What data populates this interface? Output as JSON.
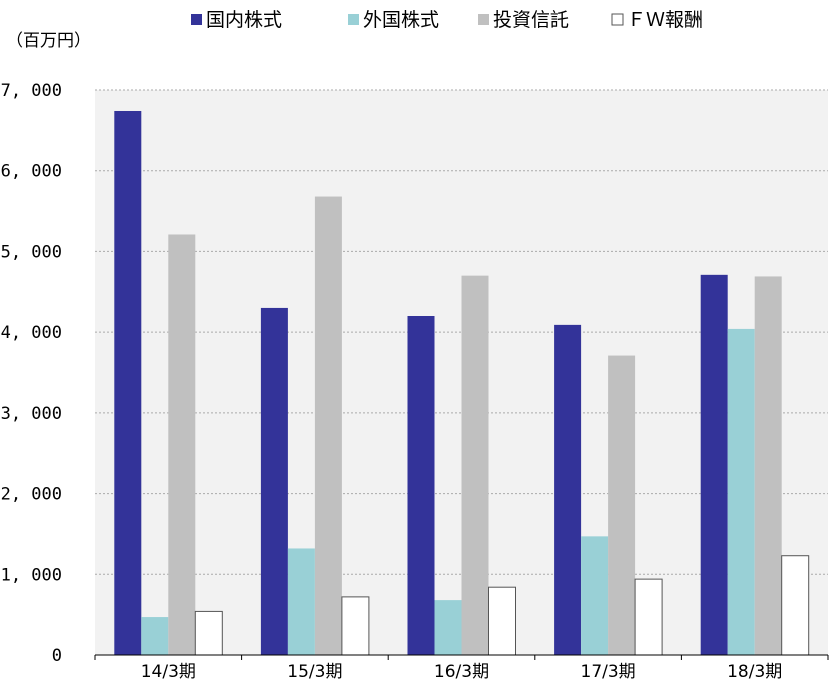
{
  "chart_data": {
    "type": "bar",
    "unit_label": "（百万円）",
    "categories": [
      "14/3期",
      "15/3期",
      "16/3期",
      "17/3期",
      "18/3期"
    ],
    "series": [
      {
        "name": "国内株式",
        "color": "#333399",
        "values": [
          6740,
          4300,
          4200,
          4090,
          4710
        ]
      },
      {
        "name": "外国株式",
        "color": "#99D0D6",
        "values": [
          470,
          1320,
          680,
          1470,
          4040
        ]
      },
      {
        "name": "投資信託",
        "color": "#C0C0C0",
        "values": [
          5210,
          5680,
          4700,
          3710,
          4690
        ]
      },
      {
        "name": "ＦＷ報酬",
        "color": "#FFFFFF",
        "values": [
          540,
          720,
          840,
          940,
          1230
        ]
      }
    ],
    "ylim": [
      0,
      7000
    ],
    "yticks": [
      0,
      1000,
      2000,
      3000,
      4000,
      5000,
      6000,
      7000
    ],
    "ytick_labels": [
      "0",
      "1, 000",
      "2, 000",
      "3, 000",
      "4, 000",
      "5, 000",
      "6, 000",
      "7, 000"
    ],
    "grid": true,
    "legend_position": "top",
    "plot_background": "#F2F2F2"
  }
}
